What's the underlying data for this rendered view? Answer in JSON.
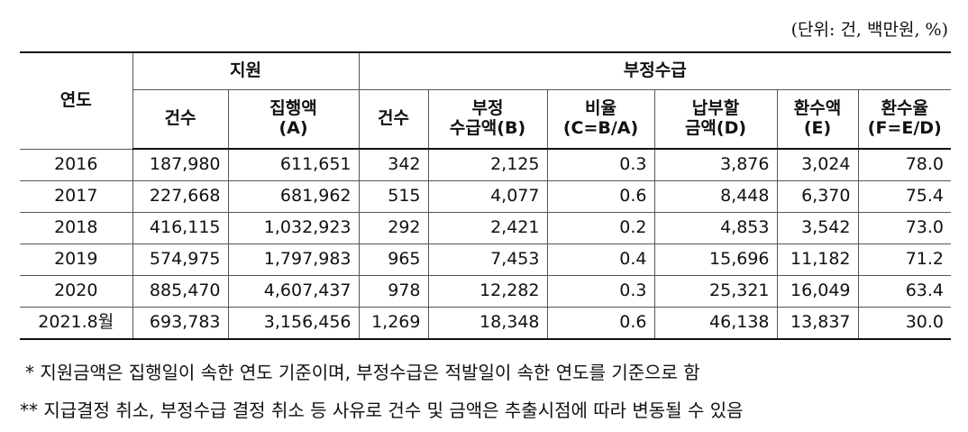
{
  "unit_note": "(단위: 건, 백만원, %)",
  "table": {
    "header_top": {
      "year": "연도",
      "support": "지원",
      "fraud": "부정수급"
    },
    "header_sub": [
      "건수",
      "집행액\n(A)",
      "건수",
      "부정\n수급액(B)",
      "비율\n(C=B/A)",
      "납부할\n금액(D)",
      "환수액\n(E)",
      "환수율\n(F=E/D)"
    ],
    "rows": [
      [
        "2016",
        "187,980",
        "611,651",
        "342",
        "2,125",
        "0.3",
        "3,876",
        "3,024",
        "78.0"
      ],
      [
        "2017",
        "227,668",
        "681,962",
        "515",
        "4,077",
        "0.6",
        "8,448",
        "6,370",
        "75.4"
      ],
      [
        "2018",
        "416,115",
        "1,032,923",
        "292",
        "2,421",
        "0.2",
        "4,853",
        "3,542",
        "73.0"
      ],
      [
        "2019",
        "574,975",
        "1,797,983",
        "965",
        "7,453",
        "0.4",
        "15,696",
        "11,182",
        "71.2"
      ],
      [
        "2020",
        "885,470",
        "4,607,437",
        "978",
        "12,282",
        "0.3",
        "25,321",
        "16,049",
        "63.4"
      ],
      [
        "2021.8월",
        "693,783",
        "3,156,456",
        "1,269",
        "18,348",
        "0.6",
        "46,138",
        "13,837",
        "30.0"
      ]
    ]
  },
  "footnotes": [
    "* 지원금액은 집행일이 속한 연도 기준이며, 부정수급은 적발일이 속한 연도를 기준으로 함",
    "** 지급결정 취소, 부정수급 결정 취소 등 사유로 건수 및 금액은 추출시점에 따라 변동될 수 있음"
  ]
}
